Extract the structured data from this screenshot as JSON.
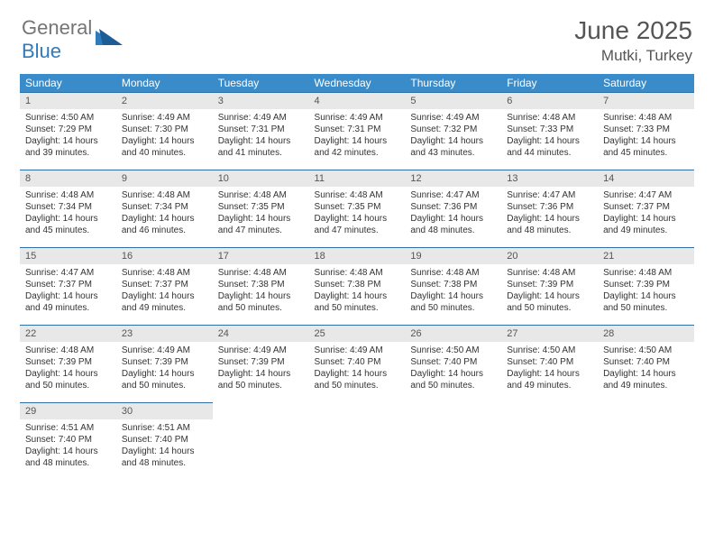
{
  "logo": {
    "text_grey": "General",
    "text_blue": "Blue"
  },
  "title": "June 2025",
  "location": "Mutki, Turkey",
  "headers": [
    "Sunday",
    "Monday",
    "Tuesday",
    "Wednesday",
    "Thursday",
    "Friday",
    "Saturday"
  ],
  "colors": {
    "header_bg": "#3a8bc9",
    "daynum_bg": "#e8e8e8",
    "border_top": "#2f6fa3",
    "logo_blue": "#2f7bbf",
    "text_grey": "#555555"
  },
  "weeks": [
    [
      {
        "n": "1",
        "sr": "Sunrise: 4:50 AM",
        "ss": "Sunset: 7:29 PM",
        "d1": "Daylight: 14 hours",
        "d2": "and 39 minutes."
      },
      {
        "n": "2",
        "sr": "Sunrise: 4:49 AM",
        "ss": "Sunset: 7:30 PM",
        "d1": "Daylight: 14 hours",
        "d2": "and 40 minutes."
      },
      {
        "n": "3",
        "sr": "Sunrise: 4:49 AM",
        "ss": "Sunset: 7:31 PM",
        "d1": "Daylight: 14 hours",
        "d2": "and 41 minutes."
      },
      {
        "n": "4",
        "sr": "Sunrise: 4:49 AM",
        "ss": "Sunset: 7:31 PM",
        "d1": "Daylight: 14 hours",
        "d2": "and 42 minutes."
      },
      {
        "n": "5",
        "sr": "Sunrise: 4:49 AM",
        "ss": "Sunset: 7:32 PM",
        "d1": "Daylight: 14 hours",
        "d2": "and 43 minutes."
      },
      {
        "n": "6",
        "sr": "Sunrise: 4:48 AM",
        "ss": "Sunset: 7:33 PM",
        "d1": "Daylight: 14 hours",
        "d2": "and 44 minutes."
      },
      {
        "n": "7",
        "sr": "Sunrise: 4:48 AM",
        "ss": "Sunset: 7:33 PM",
        "d1": "Daylight: 14 hours",
        "d2": "and 45 minutes."
      }
    ],
    [
      {
        "n": "8",
        "sr": "Sunrise: 4:48 AM",
        "ss": "Sunset: 7:34 PM",
        "d1": "Daylight: 14 hours",
        "d2": "and 45 minutes."
      },
      {
        "n": "9",
        "sr": "Sunrise: 4:48 AM",
        "ss": "Sunset: 7:34 PM",
        "d1": "Daylight: 14 hours",
        "d2": "and 46 minutes."
      },
      {
        "n": "10",
        "sr": "Sunrise: 4:48 AM",
        "ss": "Sunset: 7:35 PM",
        "d1": "Daylight: 14 hours",
        "d2": "and 47 minutes."
      },
      {
        "n": "11",
        "sr": "Sunrise: 4:48 AM",
        "ss": "Sunset: 7:35 PM",
        "d1": "Daylight: 14 hours",
        "d2": "and 47 minutes."
      },
      {
        "n": "12",
        "sr": "Sunrise: 4:47 AM",
        "ss": "Sunset: 7:36 PM",
        "d1": "Daylight: 14 hours",
        "d2": "and 48 minutes."
      },
      {
        "n": "13",
        "sr": "Sunrise: 4:47 AM",
        "ss": "Sunset: 7:36 PM",
        "d1": "Daylight: 14 hours",
        "d2": "and 48 minutes."
      },
      {
        "n": "14",
        "sr": "Sunrise: 4:47 AM",
        "ss": "Sunset: 7:37 PM",
        "d1": "Daylight: 14 hours",
        "d2": "and 49 minutes."
      }
    ],
    [
      {
        "n": "15",
        "sr": "Sunrise: 4:47 AM",
        "ss": "Sunset: 7:37 PM",
        "d1": "Daylight: 14 hours",
        "d2": "and 49 minutes."
      },
      {
        "n": "16",
        "sr": "Sunrise: 4:48 AM",
        "ss": "Sunset: 7:37 PM",
        "d1": "Daylight: 14 hours",
        "d2": "and 49 minutes."
      },
      {
        "n": "17",
        "sr": "Sunrise: 4:48 AM",
        "ss": "Sunset: 7:38 PM",
        "d1": "Daylight: 14 hours",
        "d2": "and 50 minutes."
      },
      {
        "n": "18",
        "sr": "Sunrise: 4:48 AM",
        "ss": "Sunset: 7:38 PM",
        "d1": "Daylight: 14 hours",
        "d2": "and 50 minutes."
      },
      {
        "n": "19",
        "sr": "Sunrise: 4:48 AM",
        "ss": "Sunset: 7:38 PM",
        "d1": "Daylight: 14 hours",
        "d2": "and 50 minutes."
      },
      {
        "n": "20",
        "sr": "Sunrise: 4:48 AM",
        "ss": "Sunset: 7:39 PM",
        "d1": "Daylight: 14 hours",
        "d2": "and 50 minutes."
      },
      {
        "n": "21",
        "sr": "Sunrise: 4:48 AM",
        "ss": "Sunset: 7:39 PM",
        "d1": "Daylight: 14 hours",
        "d2": "and 50 minutes."
      }
    ],
    [
      {
        "n": "22",
        "sr": "Sunrise: 4:48 AM",
        "ss": "Sunset: 7:39 PM",
        "d1": "Daylight: 14 hours",
        "d2": "and 50 minutes."
      },
      {
        "n": "23",
        "sr": "Sunrise: 4:49 AM",
        "ss": "Sunset: 7:39 PM",
        "d1": "Daylight: 14 hours",
        "d2": "and 50 minutes."
      },
      {
        "n": "24",
        "sr": "Sunrise: 4:49 AM",
        "ss": "Sunset: 7:39 PM",
        "d1": "Daylight: 14 hours",
        "d2": "and 50 minutes."
      },
      {
        "n": "25",
        "sr": "Sunrise: 4:49 AM",
        "ss": "Sunset: 7:40 PM",
        "d1": "Daylight: 14 hours",
        "d2": "and 50 minutes."
      },
      {
        "n": "26",
        "sr": "Sunrise: 4:50 AM",
        "ss": "Sunset: 7:40 PM",
        "d1": "Daylight: 14 hours",
        "d2": "and 50 minutes."
      },
      {
        "n": "27",
        "sr": "Sunrise: 4:50 AM",
        "ss": "Sunset: 7:40 PM",
        "d1": "Daylight: 14 hours",
        "d2": "and 49 minutes."
      },
      {
        "n": "28",
        "sr": "Sunrise: 4:50 AM",
        "ss": "Sunset: 7:40 PM",
        "d1": "Daylight: 14 hours",
        "d2": "and 49 minutes."
      }
    ],
    [
      {
        "n": "29",
        "sr": "Sunrise: 4:51 AM",
        "ss": "Sunset: 7:40 PM",
        "d1": "Daylight: 14 hours",
        "d2": "and 48 minutes."
      },
      {
        "n": "30",
        "sr": "Sunrise: 4:51 AM",
        "ss": "Sunset: 7:40 PM",
        "d1": "Daylight: 14 hours",
        "d2": "and 48 minutes."
      },
      {
        "empty": true
      },
      {
        "empty": true
      },
      {
        "empty": true
      },
      {
        "empty": true
      },
      {
        "empty": true
      }
    ]
  ]
}
